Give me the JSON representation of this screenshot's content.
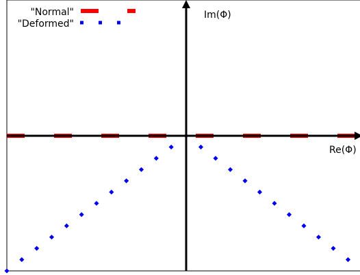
{
  "chart_data": {
    "type": "line",
    "xlabel": "Re(Φ)",
    "ylabel": "Im(Φ)",
    "xlim": [
      -1,
      1
    ],
    "ylim": [
      -1,
      1
    ],
    "grid": false,
    "legend_position": "top-left",
    "series": [
      {
        "name": "\"Normal\"",
        "color": "#ff0000",
        "style": "dashed",
        "x": [
          -1,
          1
        ],
        "y": [
          0,
          0
        ]
      },
      {
        "name": "\"Deformed\"",
        "color": "#0000ee",
        "style": "dotted",
        "x": [
          -1,
          0,
          1
        ],
        "y": [
          -1,
          0,
          -1
        ]
      }
    ]
  }
}
